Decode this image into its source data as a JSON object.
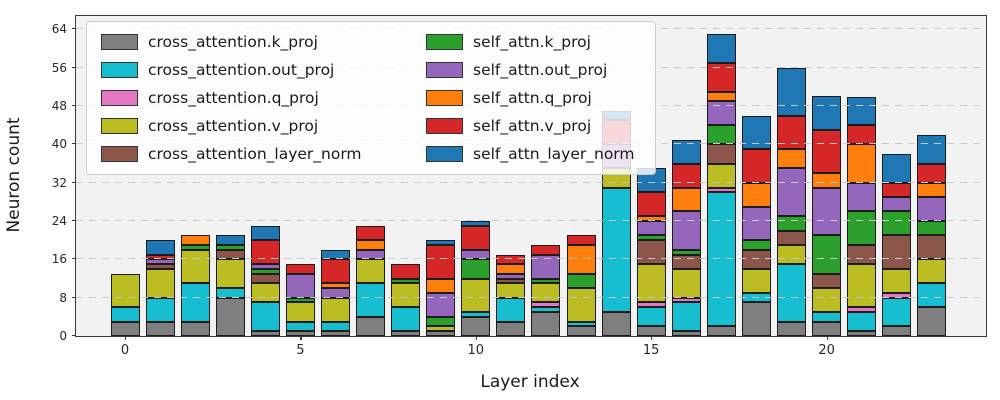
{
  "axes": {
    "ylabel": "Neuron count",
    "xlabel": "Layer index",
    "yticks": [
      0,
      8,
      16,
      24,
      32,
      40,
      48,
      56,
      64
    ],
    "xticks": [
      0,
      5,
      10,
      15,
      20
    ],
    "background": "#f2f2f2",
    "grid_color": "#c9c9c9",
    "spine_color": "#3a3a3a"
  },
  "chart_data": {
    "type": "bar",
    "stacked": true,
    "title": "",
    "xlabel": "Layer index",
    "ylabel": "Neuron count",
    "x": [
      0,
      1,
      2,
      3,
      4,
      5,
      6,
      7,
      8,
      9,
      10,
      11,
      12,
      13,
      14,
      15,
      16,
      17,
      18,
      19,
      20,
      21,
      22,
      23
    ],
    "ylim": [
      0,
      66.8
    ],
    "grid": true,
    "legend_position": "upper left",
    "series": [
      {
        "name": "cross_attention.k_proj",
        "color": "#7f7f7f",
        "values": [
          3,
          3,
          3,
          8,
          1,
          1,
          1,
          4,
          1,
          1,
          4,
          3,
          5,
          2,
          5,
          2,
          1,
          2,
          7,
          3,
          3,
          1,
          2,
          6
        ]
      },
      {
        "name": "cross_attention.out_proj",
        "color": "#17becf",
        "values": [
          3,
          5,
          8,
          2,
          6,
          2,
          2,
          7,
          5,
          0,
          1,
          5,
          1,
          1,
          26,
          4,
          6,
          28,
          2,
          12,
          2,
          4,
          6,
          5
        ]
      },
      {
        "name": "cross_attention.q_proj",
        "color": "#e377c2",
        "values": [
          0,
          0,
          0,
          0,
          0,
          0,
          0,
          0,
          0,
          0,
          0,
          0,
          1,
          0,
          0,
          1,
          1,
          1,
          0,
          0,
          0,
          1,
          1,
          0
        ]
      },
      {
        "name": "cross_attention.v_proj",
        "color": "#bcbd22",
        "values": [
          7,
          6,
          7,
          6,
          4,
          4,
          5,
          5,
          5,
          1,
          7,
          3,
          4,
          7,
          4,
          8,
          6,
          5,
          5,
          4,
          5,
          9,
          5,
          5
        ]
      },
      {
        "name": "cross_attention_layer_norm",
        "color": "#8c564b",
        "values": [
          0,
          1,
          0,
          2,
          2,
          0,
          0,
          0,
          0,
          0,
          0,
          1,
          0,
          0,
          0,
          5,
          3,
          4,
          4,
          3,
          3,
          4,
          7,
          5
        ]
      },
      {
        "name": "self_attn.k_proj",
        "color": "#2ca02c",
        "values": [
          0,
          0,
          1,
          1,
          1,
          1,
          0,
          0,
          1,
          2,
          4,
          0,
          1,
          3,
          0,
          1,
          1,
          4,
          2,
          3,
          8,
          7,
          5,
          3
        ]
      },
      {
        "name": "self_attn.out_proj",
        "color": "#9467bd",
        "values": [
          0,
          1,
          0,
          0,
          1,
          5,
          2,
          2,
          0,
          5,
          2,
          1,
          5,
          0,
          5,
          3,
          8,
          5,
          7,
          10,
          10,
          6,
          3,
          5
        ]
      },
      {
        "name": "self_attn.q_proj",
        "color": "#ff7f0e",
        "values": [
          0,
          0,
          2,
          0,
          0,
          0,
          1,
          2,
          0,
          3,
          0,
          2,
          0,
          6,
          0,
          1,
          5,
          2,
          5,
          4,
          3,
          8,
          0,
          3
        ]
      },
      {
        "name": "self_attn.v_proj",
        "color": "#d62728",
        "values": [
          0,
          1,
          0,
          0,
          5,
          2,
          5,
          3,
          3,
          7,
          5,
          2,
          2,
          2,
          5,
          5,
          5,
          6,
          7,
          7,
          9,
          4,
          3,
          4
        ]
      },
      {
        "name": "self_attn_layer_norm",
        "color": "#1f77b4",
        "values": [
          0,
          3,
          0,
          2,
          3,
          0,
          2,
          0,
          0,
          1,
          1,
          0,
          0,
          0,
          2,
          5,
          5,
          6,
          7,
          10,
          7,
          6,
          6,
          6
        ]
      }
    ]
  }
}
